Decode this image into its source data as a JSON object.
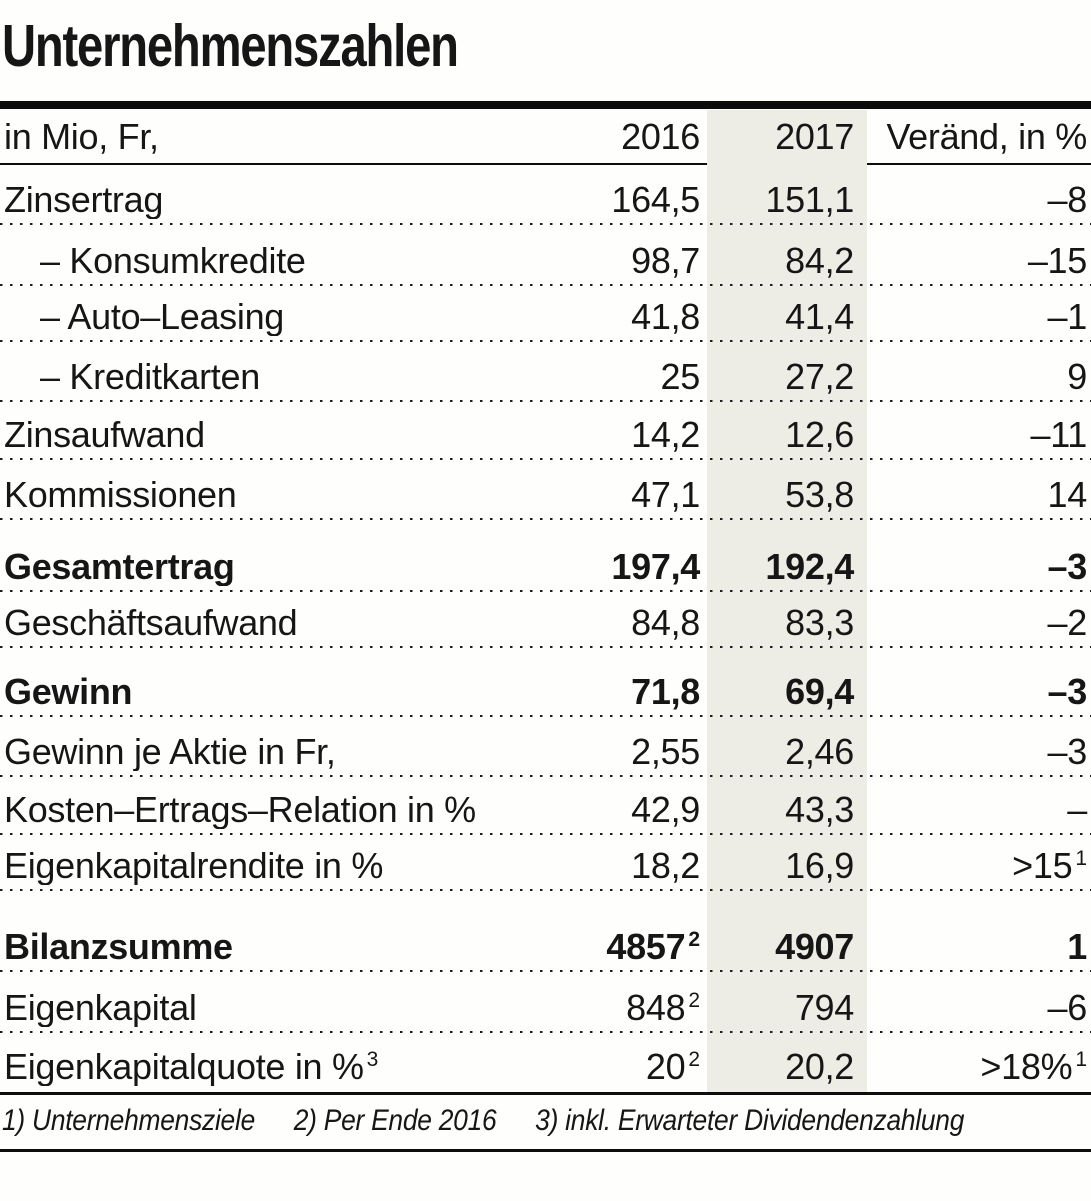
{
  "title": "Unternehmenszahlen",
  "colors": {
    "band": "#eeede5",
    "text": "#161616",
    "rule": "#0d0d0d"
  },
  "table": {
    "header": {
      "label": "in Mio, Fr,",
      "col2016": "2016",
      "col2017": "2017",
      "change": "Veränd, in %"
    },
    "rows": [
      {
        "label": "Zinsertrag",
        "v2016": "164,5",
        "v2017": "151,1",
        "change": "–8",
        "bold": false,
        "indent": false
      },
      {
        "label": "– Konsumkredite",
        "v2016": "98,7",
        "v2017": "84,2",
        "change": "–15",
        "bold": false,
        "indent": true
      },
      {
        "label": "– Auto–Leasing",
        "v2016": "41,8",
        "v2017": "41,4",
        "change": "–1",
        "bold": false,
        "indent": true
      },
      {
        "label": "– Kreditkarten",
        "v2016": "25",
        "v2017": "27,2",
        "change": "9",
        "bold": false,
        "indent": true
      },
      {
        "label": "Zinsaufwand",
        "v2016": "14,2",
        "v2017": "12,6",
        "change": "–11",
        "bold": false,
        "indent": false
      },
      {
        "label": "Kommissionen",
        "v2016": "47,1",
        "v2017": "53,8",
        "change": "14",
        "bold": false,
        "indent": false
      },
      {
        "label": "Gesamtertrag",
        "v2016": "197,4",
        "v2017": "192,4",
        "change": "–3",
        "bold": true,
        "indent": false
      },
      {
        "label": "Geschäftsaufwand",
        "v2016": "84,8",
        "v2017": "83,3",
        "change": "–2",
        "bold": false,
        "indent": false
      },
      {
        "label": "Gewinn",
        "v2016": "71,8",
        "v2017": "69,4",
        "change": "–3",
        "bold": true,
        "indent": false
      },
      {
        "label": "Gewinn je Aktie in Fr,",
        "v2016": "2,55",
        "v2017": "2,46",
        "change": "–3",
        "bold": false,
        "indent": false
      },
      {
        "label": "Kosten–Ertrags–Relation in %",
        "v2016": "42,9",
        "v2017": "43,3",
        "change": "–",
        "bold": false,
        "indent": false
      },
      {
        "label": "Eigenkapitalrendite in %",
        "v2016": "18,2",
        "v2017": "16,9",
        "change": ">15",
        "change_sup": "1",
        "bold": false,
        "indent": false
      },
      {
        "label": "Bilanzsumme",
        "v2016": "4857",
        "v2016_sup": "2",
        "v2017": "4907",
        "change": "1",
        "bold": true,
        "indent": false
      },
      {
        "label": "Eigenkapital",
        "v2016": "848",
        "v2016_sup": "2",
        "v2017": "794",
        "change": "–6",
        "bold": false,
        "indent": false
      },
      {
        "label": "Eigenkapitalquote in %",
        "label_sup": "3",
        "v2016": "20",
        "v2016_sup": "2",
        "v2017": "20,2",
        "change": ">18%",
        "change_sup": "1",
        "bold": false,
        "indent": false
      }
    ],
    "footnotes": [
      "1) Unternehmensziele",
      "2) Per Ende 2016",
      "3) inkl. Erwarteter Dividendenzahlung"
    ]
  }
}
